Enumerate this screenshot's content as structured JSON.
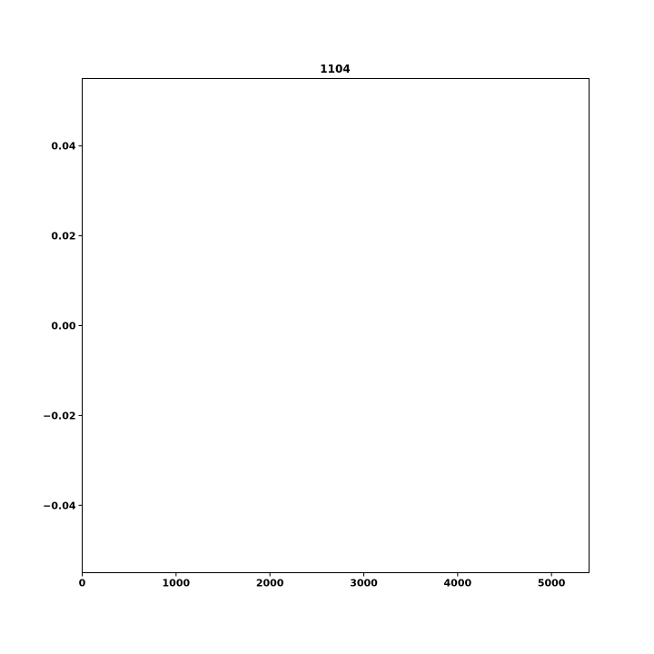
{
  "chart_data": {
    "type": "line",
    "title": "1104",
    "xlabel": "",
    "ylabel": "",
    "xlim": [
      0,
      5400
    ],
    "ylim": [
      -0.055,
      0.055
    ],
    "x_ticks": [
      0,
      1000,
      2000,
      3000,
      4000,
      5000
    ],
    "x_tick_labels": [
      "0",
      "1000",
      "2000",
      "3000",
      "4000",
      "5000"
    ],
    "y_ticks": [
      0.04,
      0.02,
      0.0,
      -0.02,
      -0.04
    ],
    "y_tick_labels": [
      "0.04",
      "0.02",
      "0.00",
      "−0.02",
      "−0.04"
    ],
    "grid": false,
    "series": []
  },
  "colors": {
    "axis": "#000000",
    "background": "#ffffff"
  }
}
